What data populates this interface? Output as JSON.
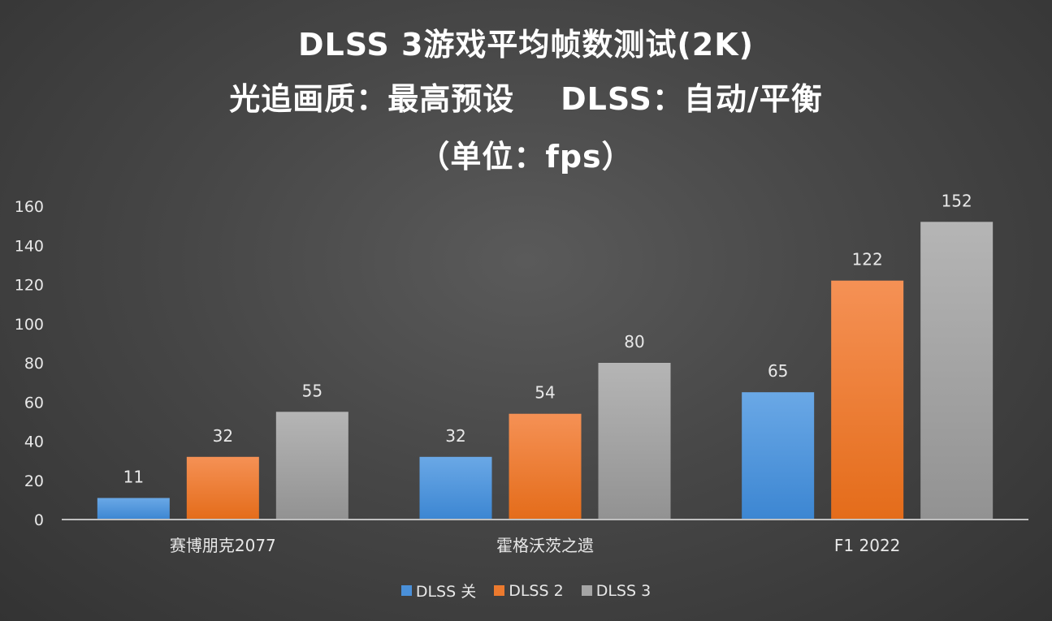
{
  "title_lines": [
    "DLSS 3游戏平均帧数测试(2K)",
    "光追画质：最高预设    DLSS：自动/平衡",
    "（单位：fps）"
  ],
  "chart_data": {
    "type": "bar",
    "title": "DLSS 3游戏平均帧数测试(2K) 光追画质：最高预设 DLSS：自动/平衡 （单位：fps）",
    "categories": [
      "赛博朋克2077",
      "霍格沃茨之遗",
      "F1 2022"
    ],
    "series": [
      {
        "name": "DLSS 关",
        "values": [
          11,
          32,
          65
        ],
        "color": "#4a90d9"
      },
      {
        "name": "DLSS 2",
        "values": [
          32,
          54,
          122
        ],
        "color": "#ec7a2e"
      },
      {
        "name": "DLSS 3",
        "values": [
          55,
          80,
          152
        ],
        "color": "#a5a5a5"
      }
    ],
    "yticks": [
      0,
      20,
      40,
      60,
      80,
      100,
      120,
      140,
      160
    ],
    "ylim": [
      0,
      160
    ],
    "grid": false,
    "data_labels": true,
    "legend_position": "bottom"
  }
}
